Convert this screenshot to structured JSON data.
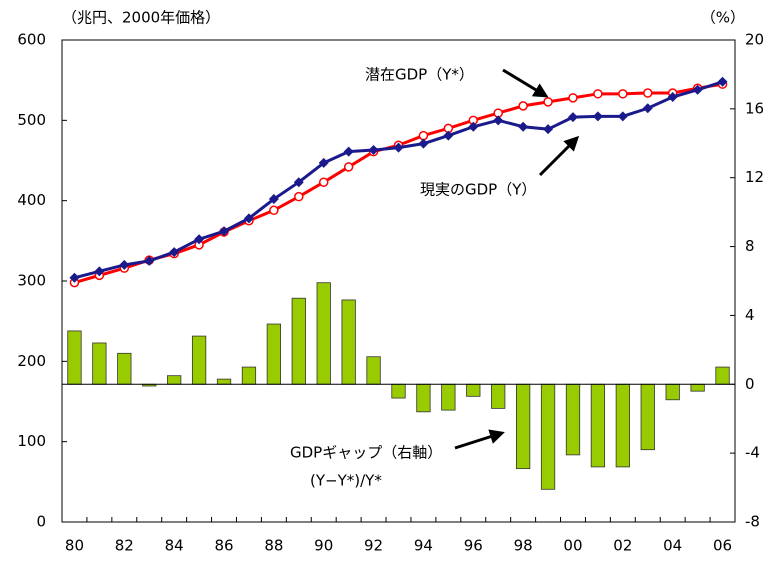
{
  "chart_data": {
    "type": "combo",
    "y_unit_label": "（兆円、2000年価格）",
    "y2_unit_label": "（%）",
    "categories": [
      "80",
      null,
      "82",
      null,
      "84",
      null,
      "86",
      null,
      "88",
      null,
      "90",
      null,
      "92",
      null,
      "94",
      null,
      "96",
      null,
      "98",
      null,
      "00",
      null,
      "02",
      null,
      "04",
      null,
      "06"
    ],
    "ylim": [
      0,
      600
    ],
    "yticks": [
      0,
      100,
      200,
      300,
      400,
      500,
      600
    ],
    "y2lim": [
      -8,
      20
    ],
    "y2ticks": [
      -8,
      -4,
      0,
      4,
      8,
      12,
      16,
      20
    ],
    "series": [
      {
        "name": "GDPギャップ（右軸）",
        "type": "bar",
        "axis": "y2",
        "color": "#99cc00",
        "values": [
          3.1,
          2.4,
          1.8,
          -0.1,
          0.5,
          2.8,
          0.3,
          1.0,
          3.5,
          5.0,
          5.9,
          4.9,
          1.6,
          -0.8,
          -1.6,
          -1.5,
          -0.7,
          -1.4,
          -4.9,
          -6.1,
          -4.1,
          -4.8,
          -4.8,
          -3.8,
          -0.9,
          -0.4,
          1.0
        ]
      },
      {
        "name": "潜在GDP（Y*）",
        "type": "line",
        "marker": "circle",
        "color": "#ff0000",
        "values": [
          298,
          307,
          316,
          326,
          334,
          345,
          361,
          375,
          388,
          405,
          423,
          442,
          461,
          469,
          481,
          490,
          500,
          509,
          518,
          523,
          528,
          533,
          533,
          534,
          534,
          540,
          545
        ]
      },
      {
        "name": "現実のGDP（Y）",
        "type": "line",
        "marker": "diamond",
        "color": "#1a1a8c",
        "values": [
          304,
          312,
          320,
          325,
          336,
          352,
          362,
          378,
          402,
          423,
          447,
          461,
          463,
          466,
          471,
          481,
          492,
          500,
          492,
          489,
          504,
          505,
          505,
          515,
          529,
          538,
          548
        ]
      }
    ],
    "annotations": [
      "(Y−Y*)/Y*"
    ]
  }
}
